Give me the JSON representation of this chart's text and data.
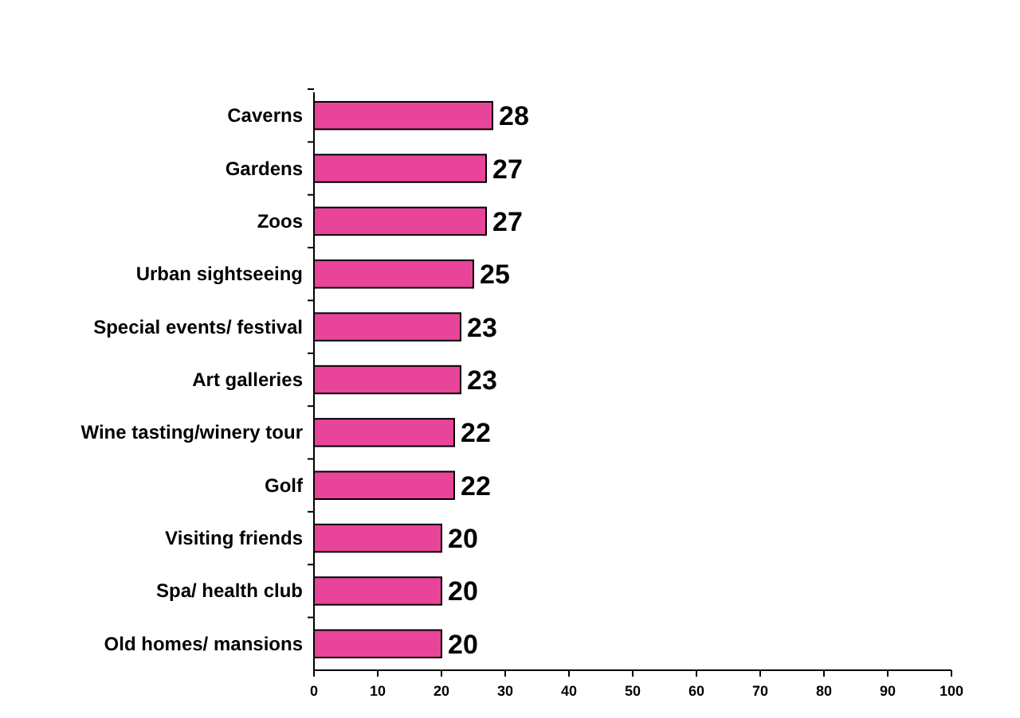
{
  "chart_data": {
    "type": "bar",
    "orientation": "horizontal",
    "categories": [
      "Caverns",
      "Gardens",
      "Zoos",
      "Urban sightseeing",
      "Special events/ festival",
      "Art galleries",
      "Wine tasting/winery tour",
      "Golf",
      "Visiting friends",
      "Spa/ health club",
      "Old homes/ mansions"
    ],
    "values": [
      28,
      27,
      27,
      25,
      23,
      23,
      22,
      22,
      20,
      20,
      20
    ],
    "color": "#e8449a",
    "xlim": [
      0,
      100
    ],
    "xticks": [
      0,
      10,
      20,
      30,
      40,
      50,
      60,
      70,
      80,
      90,
      100
    ],
    "data_labels": true
  }
}
